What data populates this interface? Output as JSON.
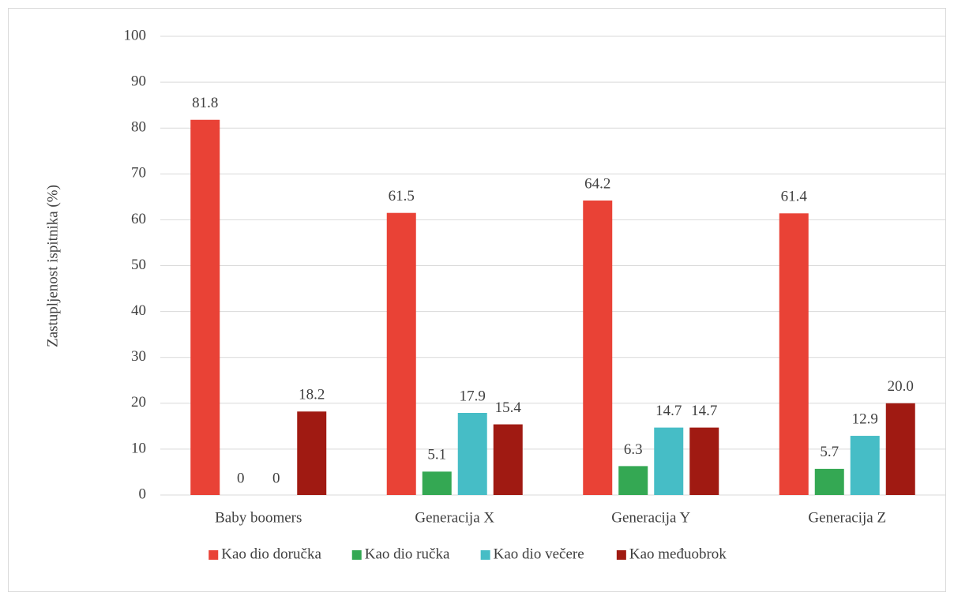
{
  "chart_data": {
    "type": "bar",
    "y_label": "Zastupljenost ispitnika (%)",
    "categories": [
      "Baby boomers",
      "Generacija X",
      "Generacija Y",
      "Generacija Z"
    ],
    "series": [
      {
        "name": "Kao dio doručka",
        "color": "#e94236",
        "values": [
          81.8,
          61.5,
          64.2,
          61.4
        ]
      },
      {
        "name": "Kao dio ručka",
        "color": "#34a853",
        "values": [
          0,
          5.1,
          6.3,
          5.7
        ]
      },
      {
        "name": "Kao dio večere",
        "color": "#46bdc6",
        "values": [
          0,
          17.9,
          14.7,
          12.9
        ]
      },
      {
        "name": "Kao međuobrok",
        "color": "#a01a12",
        "values": [
          18.2,
          15.4,
          14.7,
          20.0
        ],
        "value_labels": [
          "18.2",
          "15.4",
          "14.7",
          "20.0"
        ]
      }
    ],
    "ylim": [
      0,
      100
    ],
    "yticks": [
      0,
      10,
      20,
      30,
      40,
      50,
      60,
      70,
      80,
      90,
      100
    ],
    "grid": true,
    "legend": "bottom"
  }
}
